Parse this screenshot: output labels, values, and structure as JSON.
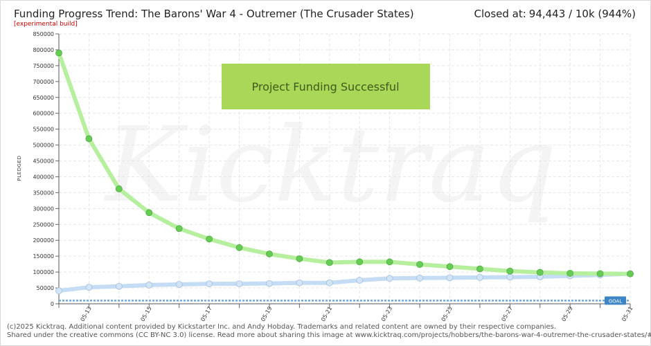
{
  "header": {
    "title": "Funding Progress Trend: The Barons' War 4 - Outremer (The Crusader States)",
    "subtitle": "[experimental build]",
    "closed_label": "Closed at:",
    "closed_value": "94,443 / 10k (944%)"
  },
  "footer": {
    "line1": "(c)2025 Kicktraq. Additional content provided by Kickstarter Inc. and Andy Hobday. Trademarks and related content are owned by their respective companies.",
    "line2": "Shared under the creative commons (CC BY-NC 3.0) license. Read more about sharing this image at www.kicktraq.com/projects/hobbers/the-barons-war-4-outremer-the-crusader-states/#sharing"
  },
  "banner": {
    "text": "Project Funding Successful"
  },
  "watermark": {
    "text": "Kicktraq"
  },
  "colors": {
    "trend_line": "#b6ef9e",
    "trend_point": "#66cc55",
    "pledged_line": "#c4dcf4",
    "pledged_point": "#d2e4f6",
    "goal_line": "#6fa8dc",
    "goal_badge": "#3d85c6",
    "banner_fill": "#a9d858",
    "grid": "#e6e6e6"
  },
  "chart_data": {
    "type": "line",
    "title": "",
    "xlabel": "",
    "ylabel": "PLEDGED",
    "ylim": [
      0,
      850000
    ],
    "yticks": [
      0,
      50000,
      100000,
      150000,
      200000,
      250000,
      300000,
      350000,
      400000,
      450000,
      500000,
      550000,
      600000,
      650000,
      700000,
      750000,
      800000,
      850000
    ],
    "x": [
      "05-12",
      "05-13",
      "05-14",
      "05-15",
      "05-16",
      "05-17",
      "05-18",
      "05-19",
      "05-20",
      "05-21",
      "05-22",
      "05-23",
      "05-24",
      "05-25",
      "05-26",
      "05-27",
      "05-28",
      "05-29",
      "05-30",
      "05-31"
    ],
    "xtick_labels": [
      "05-13",
      "05-15",
      "05-17",
      "05-19",
      "05-21",
      "05-23",
      "05-25",
      "05-27",
      "05-29",
      "05-31"
    ],
    "goal": {
      "label": "GOAL",
      "value": 10000
    },
    "grid": true,
    "series": [
      {
        "role": "trend",
        "values": [
          790000,
          520000,
          362000,
          287000,
          237000,
          204000,
          177000,
          157000,
          142000,
          130000,
          132000,
          132000,
          124000,
          117000,
          110000,
          103000,
          99000,
          96000,
          95000,
          94443
        ]
      },
      {
        "role": "pledged",
        "values": [
          41000,
          52000,
          55000,
          59000,
          61000,
          63000,
          63000,
          64000,
          66000,
          66000,
          74000,
          80000,
          81000,
          82000,
          83000,
          84000,
          85000,
          88000,
          91000,
          94443
        ]
      }
    ]
  }
}
